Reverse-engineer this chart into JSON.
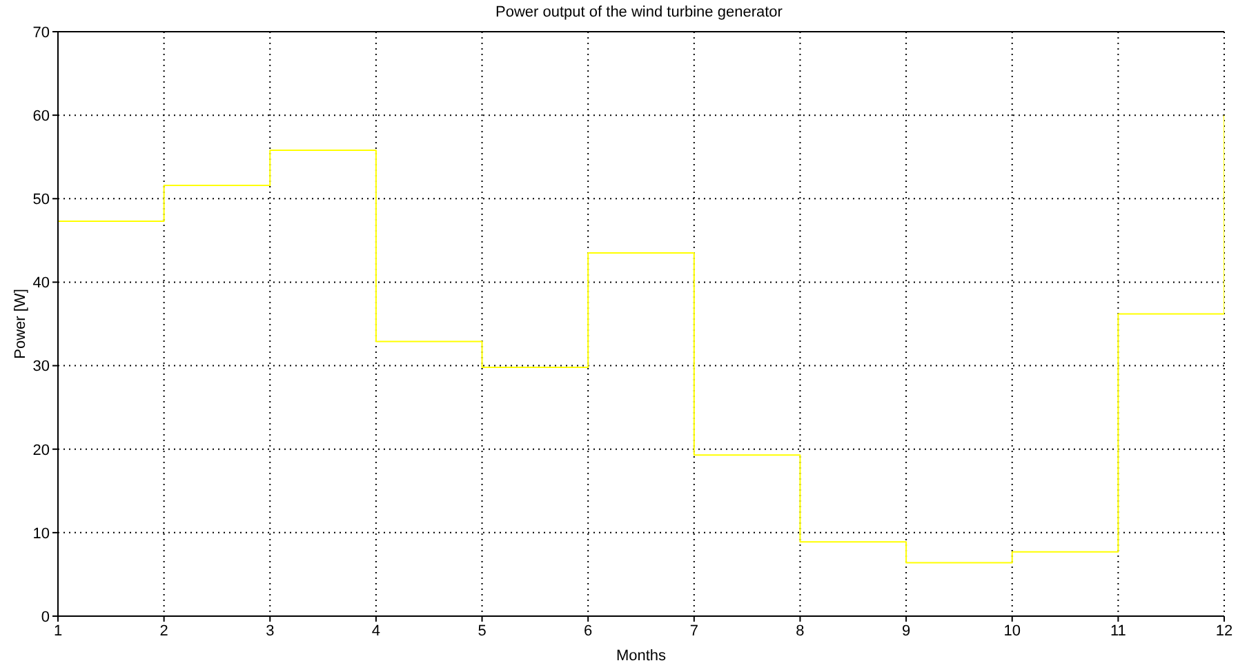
{
  "chart_data": {
    "type": "step",
    "title": "Power output of the wind turbine generator",
    "xlabel": "Months",
    "ylabel": "Power [W]",
    "x": [
      1,
      2,
      3,
      4,
      5,
      6,
      7,
      8,
      9,
      10,
      11,
      12
    ],
    "series": [
      {
        "color": "#ffff00",
        "values": [
          47.3,
          51.6,
          55.8,
          32.9,
          29.8,
          43.5,
          19.3,
          8.9,
          6.4,
          7.7,
          36.2,
          60
        ]
      }
    ],
    "xlim": [
      1,
      12
    ],
    "xticks": [
      1,
      2,
      3,
      4,
      5,
      6,
      7,
      8,
      9,
      10,
      11,
      12
    ],
    "ylim": [
      0,
      70
    ],
    "yticks": [
      0,
      10,
      20,
      30,
      40,
      50,
      60,
      70
    ],
    "grid": true
  }
}
